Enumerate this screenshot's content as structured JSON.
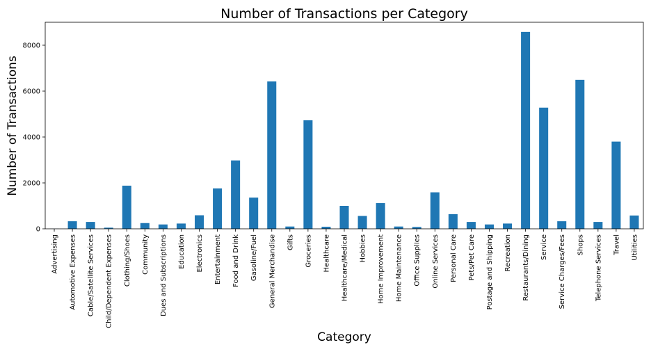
{
  "chart_data": {
    "type": "bar",
    "title": "Number of Transactions per Category",
    "xlabel": "Category",
    "ylabel": "Number of Transactions",
    "ylim": [
      0,
      9000
    ],
    "yticks": [
      0,
      2000,
      4000,
      6000,
      8000
    ],
    "grid": false,
    "bar_color": "#1f77b4",
    "categories": [
      "Advertising",
      "Automotive Expenses",
      "Cable/Satellite Services",
      "Child/Dependent Expenses",
      "Clothing/Shoes",
      "Community",
      "Dues and Subscriptions",
      "Education",
      "Electronics",
      "Entertainment",
      "Food and Drink",
      "Gasoline/Fuel",
      "General Merchandise",
      "Gifts",
      "Groceries",
      "Healthcare",
      "Healthcare/Medical",
      "Hobbies",
      "Home Improvement",
      "Home Maintenance",
      "Office Supplies",
      "Online Services",
      "Personal Care",
      "Pets/Pet Care",
      "Postage and Shipping",
      "Recreation",
      "Restaurants/Dining",
      "Service",
      "Service Charges/Fees",
      "Shops",
      "Telephone Services",
      "Travel",
      "Utilities"
    ],
    "values": [
      5,
      330,
      300,
      50,
      1880,
      250,
      190,
      230,
      590,
      1760,
      2980,
      1360,
      6420,
      100,
      4730,
      90,
      1000,
      560,
      1120,
      100,
      80,
      1590,
      640,
      300,
      190,
      230,
      8580,
      5280,
      330,
      6490,
      300,
      3800,
      580
    ]
  }
}
